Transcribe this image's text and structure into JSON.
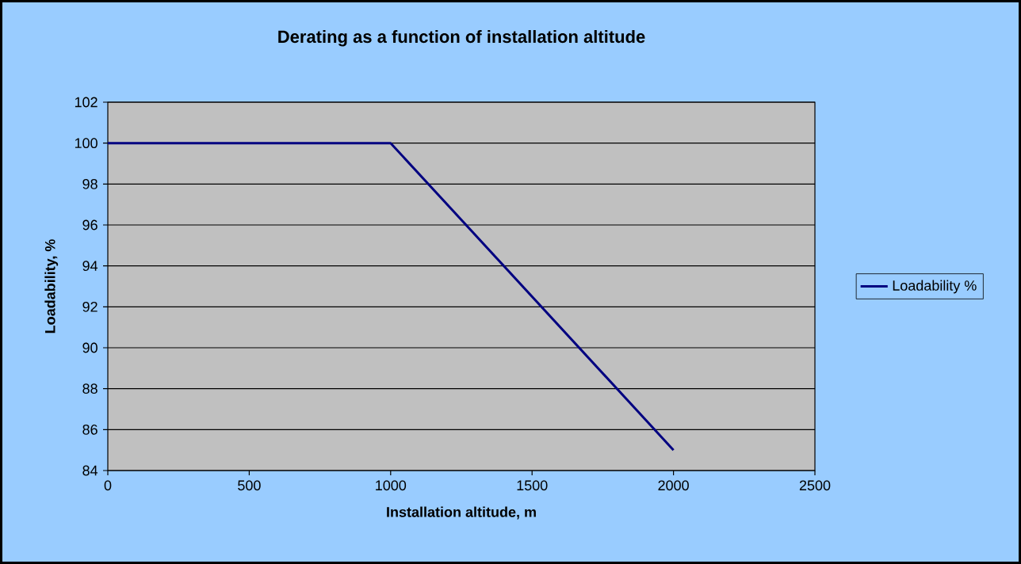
{
  "chart_data": {
    "type": "line",
    "title": "Derating as a function of installation altitude",
    "xlabel": "Installation altitude, m",
    "ylabel": "Loadability, %",
    "x": [
      0,
      1000,
      2000
    ],
    "series": [
      {
        "name": "Loadability %",
        "color": "#000080",
        "values": [
          100,
          100,
          85
        ]
      }
    ],
    "xlim": [
      0,
      2500
    ],
    "xticks": [
      0,
      500,
      1000,
      1500,
      2000,
      2500
    ],
    "ylim": [
      84,
      102
    ],
    "yticks": [
      84,
      86,
      88,
      90,
      92,
      94,
      96,
      98,
      100,
      102
    ],
    "grid": "y",
    "legend": "right",
    "marker": "none",
    "line_style": "solid"
  }
}
